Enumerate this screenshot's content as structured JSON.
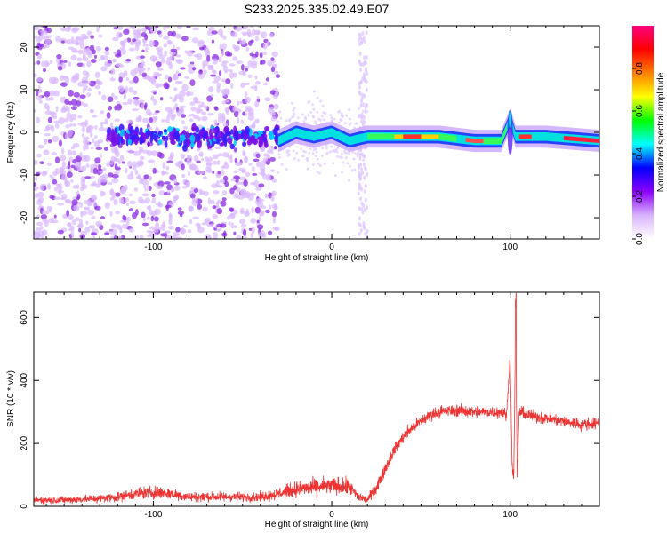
{
  "title": "S233.2025.335.02.49.E07",
  "chart_data": [
    {
      "type": "heatmap",
      "name": "spectrogram",
      "xlabel": "Height of straight line (km)",
      "ylabel": "Frequency (Hz)",
      "xlim": [
        -167,
        150
      ],
      "ylim": [
        -25,
        25
      ],
      "xticks": [
        -100,
        0,
        100
      ],
      "xtick_labels": [
        "-100",
        "0",
        "100"
      ],
      "yticks": [
        -20,
        -10,
        0,
        10,
        20
      ],
      "ytick_labels": [
        "-20",
        "-10",
        "0",
        "10",
        "20"
      ],
      "colorbar": {
        "label": "Normalized spectral amplitude",
        "range": [
          0,
          1
        ],
        "ticks": [
          0.0,
          0.2,
          0.4,
          0.6,
          0.8
        ],
        "tick_labels": [
          "0.0",
          "0.2",
          "0.4",
          "0.6",
          "0.8"
        ],
        "colormap": [
          "#ffffff",
          "#d9b3ff",
          "#8b00ff",
          "#0000ff",
          "#00ffff",
          "#00ff00",
          "#ffff00",
          "#ff8000",
          "#ff0000",
          "#ff0080"
        ]
      },
      "features": {
        "noise_region_km": [
          -167,
          -35
        ],
        "ridge_start_km": -30,
        "ridge_center_hz": [
          [
            -30,
            -2
          ],
          [
            -20,
            0
          ],
          [
            -10,
            -1
          ],
          [
            0,
            0
          ],
          [
            10,
            -2
          ],
          [
            20,
            -1
          ],
          [
            40,
            -1
          ],
          [
            60,
            -1
          ],
          [
            80,
            -2
          ],
          [
            95,
            -2
          ],
          [
            100,
            3
          ],
          [
            103,
            -1
          ],
          [
            120,
            -1
          ],
          [
            150,
            -2
          ]
        ],
        "peak_amplitude_region_km": [
          30,
          150
        ]
      }
    },
    {
      "type": "line",
      "name": "snr",
      "xlabel": "Height of straight line (km)",
      "ylabel": "SNR (10 * v/v)",
      "xlim": [
        -167,
        150
      ],
      "ylim": [
        0,
        680
      ],
      "xticks": [
        -100,
        0,
        100
      ],
      "xtick_labels": [
        "-100",
        "0",
        "100"
      ],
      "yticks": [
        0,
        200,
        400,
        600
      ],
      "ytick_labels": [
        "0",
        "200",
        "400",
        "600"
      ],
      "color": "#ee3333",
      "series": [
        {
          "name": "SNR",
          "x": [
            -167,
            -150,
            -130,
            -120,
            -110,
            -100,
            -90,
            -80,
            -70,
            -60,
            -50,
            -40,
            -30,
            -20,
            -10,
            0,
            10,
            15,
            20,
            25,
            30,
            35,
            40,
            45,
            50,
            55,
            60,
            70,
            80,
            90,
            95,
            98,
            100,
            101,
            102,
            103,
            104,
            105,
            110,
            120,
            130,
            140,
            150
          ],
          "y": [
            20,
            20,
            25,
            30,
            40,
            45,
            40,
            30,
            30,
            30,
            30,
            30,
            40,
            55,
            60,
            65,
            60,
            30,
            20,
            60,
            120,
            180,
            220,
            250,
            270,
            290,
            300,
            305,
            300,
            300,
            300,
            290,
            480,
            150,
            80,
            560,
            90,
            300,
            290,
            280,
            270,
            260,
            265
          ]
        }
      ]
    }
  ]
}
